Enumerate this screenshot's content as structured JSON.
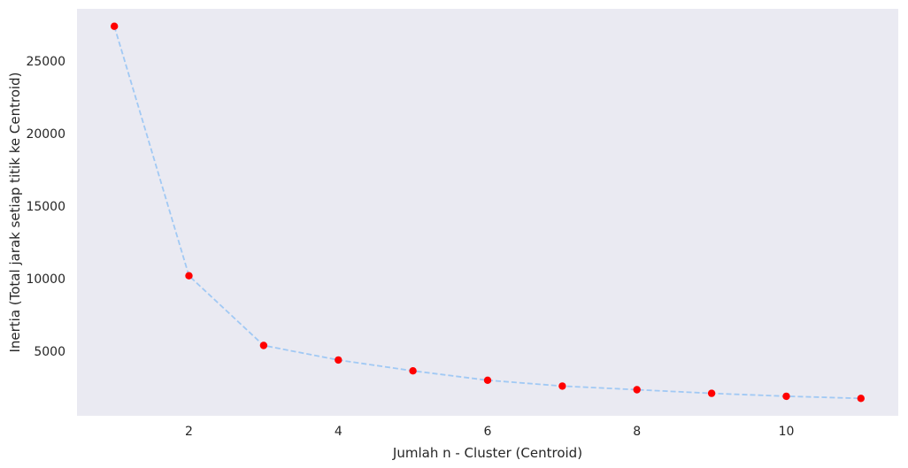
{
  "chart_data": {
    "type": "line",
    "xlabel": "Jumlah n - Cluster (Centroid)",
    "ylabel": "Inertia (Total jarak setiap titik ke Centroid)",
    "x": [
      1,
      2,
      3,
      4,
      5,
      6,
      7,
      8,
      9,
      10,
      11
    ],
    "series": [
      {
        "values": [
          27400,
          10200,
          5400,
          4400,
          3650,
          3000,
          2600,
          2350,
          2100,
          1900,
          1750
        ]
      }
    ],
    "xlim": [
      0.5,
      11.5
    ],
    "ylim": [
      550,
      28600
    ],
    "xticks": [
      2,
      4,
      6,
      8,
      10
    ],
    "yticks": [
      5000,
      10000,
      15000,
      20000,
      25000
    ],
    "grid": false,
    "colors": {
      "background": "#eaeaf2",
      "line": "#a1c9f4",
      "marker": "#ff0000",
      "text": "#262626"
    }
  }
}
